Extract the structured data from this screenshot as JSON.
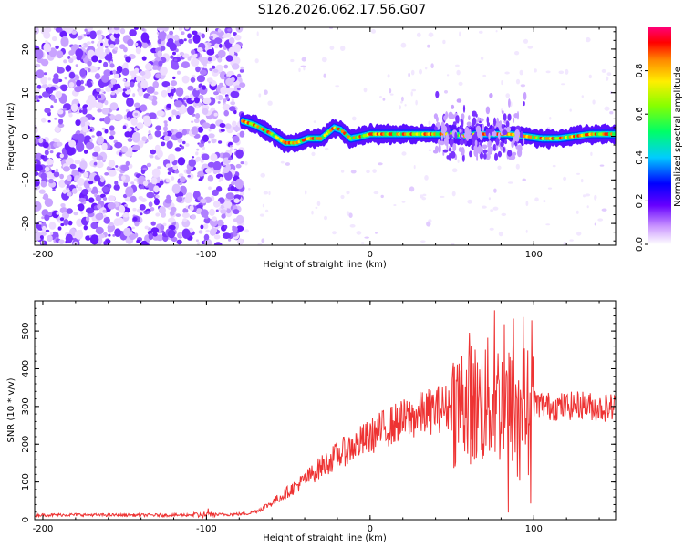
{
  "title": "S126.2026.062.17.56.G07",
  "chart_data": [
    {
      "type": "heatmap",
      "name": "spectrogram",
      "xlabel": "Height of straight line (km)",
      "ylabel": "Frequency (Hz)",
      "xlim": [
        -205,
        150
      ],
      "ylim": [
        -25,
        25
      ],
      "xticks": [
        -200,
        -100,
        0,
        100
      ],
      "xtick_labels": [
        "-200",
        "-100",
        "0",
        "100"
      ],
      "yticks": [
        -20,
        -10,
        0,
        10,
        20
      ],
      "ytick_labels": [
        "-20",
        "-10",
        "0",
        "10",
        "20"
      ],
      "noise_region_x": [
        -205,
        -78
      ],
      "signal_ridge": {
        "x": [
          -78,
          -70,
          -60,
          -52,
          -45,
          -38,
          -30,
          -22,
          -18,
          -12,
          -5,
          0,
          10,
          20,
          30,
          40,
          50,
          58,
          65,
          75,
          85,
          95,
          105,
          115,
          125,
          135,
          145,
          150
        ],
        "freq": [
          3.5,
          2.5,
          0.5,
          -1.5,
          -1.5,
          -0.5,
          -0.5,
          2.0,
          1.5,
          -0.5,
          0.0,
          0.5,
          0.5,
          0.5,
          0.5,
          0.5,
          0.5,
          0.0,
          0.5,
          0.5,
          0.5,
          0.0,
          -0.5,
          -0.5,
          0.0,
          0.5,
          0.5,
          0.5
        ]
      },
      "colorbar": {
        "label": "Normalized spectral amplitude",
        "range": [
          0.0,
          1.0
        ],
        "ticks": [
          0.0,
          0.2,
          0.4,
          0.6,
          0.8
        ],
        "tick_labels": [
          "0.0",
          "0.2",
          "0.4",
          "0.6",
          "0.8"
        ]
      }
    },
    {
      "type": "line",
      "name": "snr",
      "xlabel": "Height of straight line (km)",
      "ylabel": "SNR (10 * v/v)",
      "xlim": [
        -205,
        150
      ],
      "ylim": [
        0,
        580
      ],
      "xticks": [
        -200,
        -100,
        0,
        100
      ],
      "xtick_labels": [
        "-200",
        "-100",
        "0",
        "100"
      ],
      "yticks": [
        0,
        100,
        200,
        300,
        400,
        500
      ],
      "ytick_labels": [
        "0",
        "100",
        "200",
        "300",
        "400",
        "500"
      ],
      "series": [
        {
          "name": "SNR",
          "color": "#ee3333",
          "x": [
            -205,
            -180,
            -150,
            -120,
            -100,
            -85,
            -75,
            -68,
            -60,
            -50,
            -40,
            -30,
            -20,
            -10,
            0,
            10,
            20,
            30,
            40,
            50,
            55,
            60,
            65,
            70,
            75,
            80,
            85,
            90,
            95,
            100,
            110,
            120,
            130,
            140,
            150
          ],
          "y": [
            12,
            13,
            12,
            12,
            13,
            14,
            16,
            25,
            45,
            75,
            105,
            140,
            170,
            195,
            220,
            245,
            262,
            278,
            292,
            300,
            310,
            330,
            300,
            310,
            320,
            310,
            300,
            305,
            300,
            310,
            300,
            300,
            305,
            295,
            300
          ]
        }
      ]
    }
  ]
}
